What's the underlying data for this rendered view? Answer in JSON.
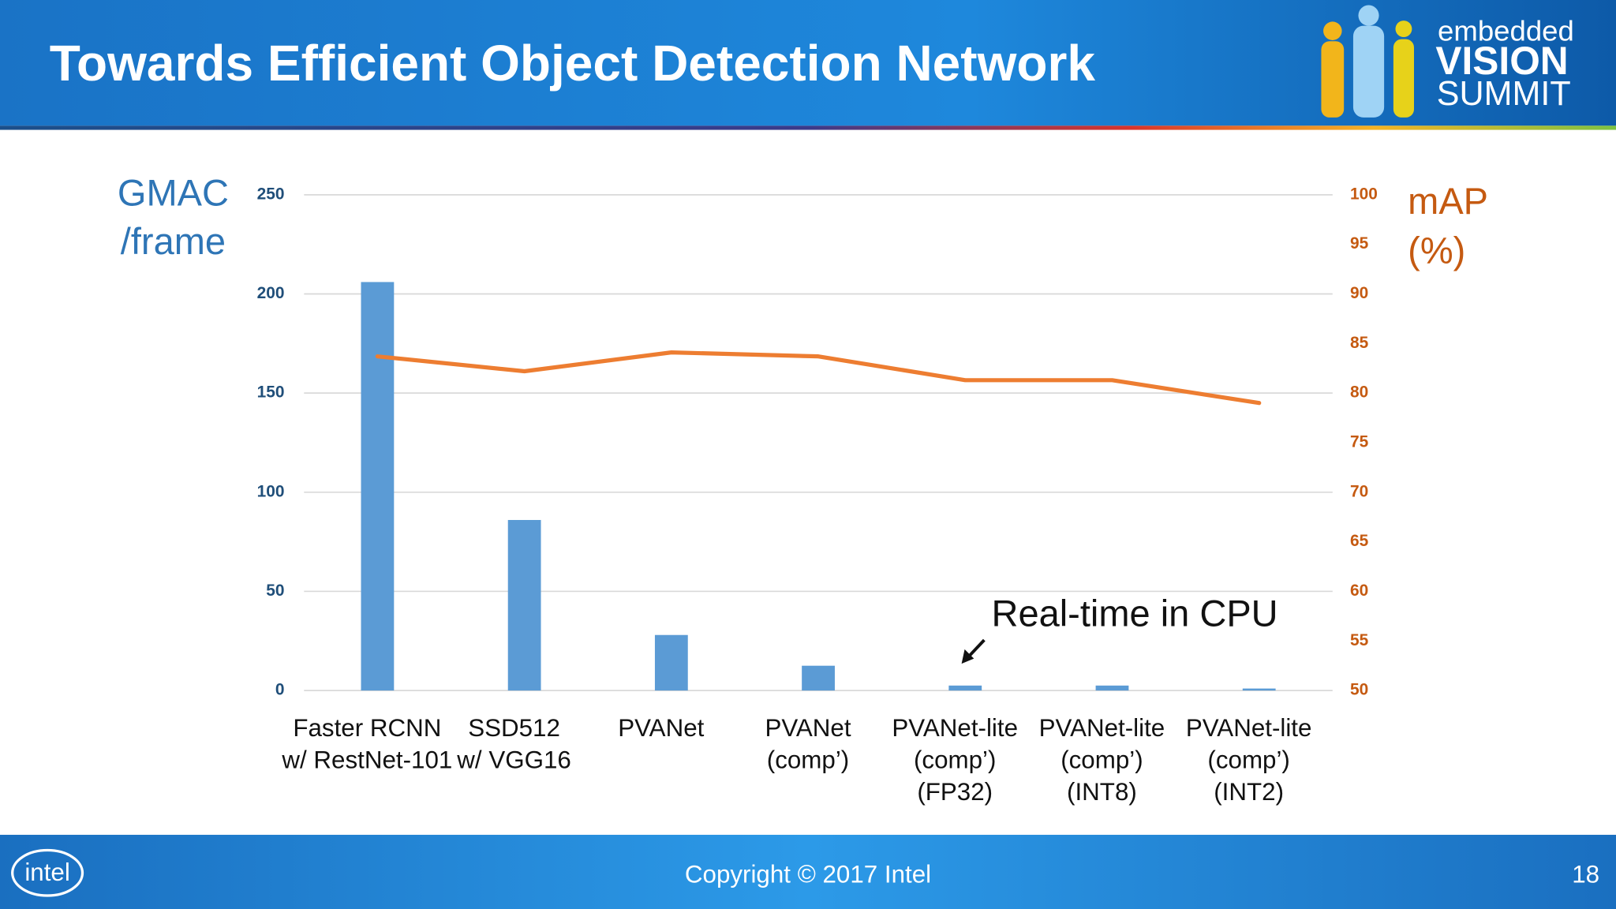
{
  "header": {
    "title": "Towards Efficient Object Detection Network",
    "logo": [
      "embedded",
      "VISION",
      "SUMMIT"
    ]
  },
  "chart_data": {
    "type": "bar_line",
    "categories": [
      [
        "Faster RCNN",
        "w/ RestNet-101"
      ],
      [
        "SSD512",
        "w/ VGG16"
      ],
      [
        "PVANet"
      ],
      [
        "PVANet",
        "(comp’)"
      ],
      [
        "PVANet-lite",
        "(comp’)",
        "(FP32)"
      ],
      [
        "PVANet-lite",
        "(comp’)",
        "(INT8)"
      ],
      [
        "PVANet-lite",
        "(comp’)",
        "(INT2)"
      ]
    ],
    "y_label": [
      "GMAC",
      "/frame"
    ],
    "y2_label": [
      "mAP",
      "(%)"
    ],
    "series": [
      {
        "type": "bar",
        "color": "#5b9bd5",
        "values": [
          206,
          86,
          28,
          12.5,
          2.5,
          2.5,
          1
        ]
      },
      {
        "type": "line",
        "axis": "y2",
        "color": "#ed7d31",
        "values": [
          83.7,
          82.2,
          84.1,
          83.7,
          81.3,
          81.3,
          79.0
        ]
      }
    ],
    "ylim": [
      0,
      250
    ],
    "yticks": [
      0,
      50,
      100,
      150,
      200,
      250
    ],
    "y2lim": [
      50,
      100
    ],
    "y2ticks": [
      50,
      55,
      60,
      65,
      70,
      75,
      80,
      85,
      90,
      95,
      100
    ],
    "grid": true,
    "annotation": "Real-time in CPU"
  },
  "footer": {
    "copyright": "Copyright © 2017 Intel",
    "page": "18",
    "logo": "intel"
  }
}
